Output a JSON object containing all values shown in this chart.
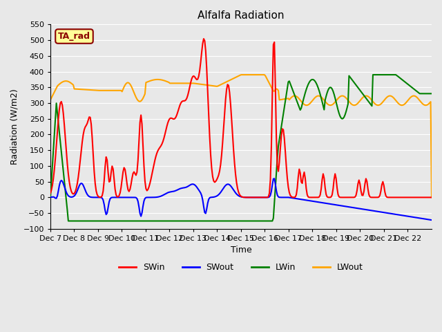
{
  "title": "Alfalfa Radiation",
  "ylabel": "Radiation (W/m2)",
  "xlabel": "Time",
  "ylim": [
    -100,
    550
  ],
  "background_color": "#e8e8e8",
  "annotation_text": "TA_rad",
  "annotation_bg": "#ffff99",
  "annotation_border": "#8B0000",
  "x_tick_labels": [
    "Dec 7",
    "Dec 8",
    "Dec 9",
    "Dec 10",
    "Dec 11",
    "Dec 12",
    "Dec 13",
    "Dec 14",
    "Dec 15",
    "Dec 16",
    "Dec 17",
    "Dec 18",
    "Dec 19",
    "Dec 20",
    "Dec 21",
    "Dec 22"
  ],
  "legend_labels": [
    "SWin",
    "SWout",
    "LWin",
    "LWout"
  ],
  "legend_colors": [
    "red",
    "blue",
    "green",
    "orange"
  ],
  "SWin_color": "red",
  "SWout_color": "blue",
  "LWin_color": "green",
  "LWout_color": "orange",
  "line_width": 1.5,
  "grid_color": "white",
  "yticks": [
    -100,
    -50,
    0,
    50,
    100,
    150,
    200,
    250,
    300,
    350,
    400,
    450,
    500,
    550
  ],
  "n_days": 16
}
